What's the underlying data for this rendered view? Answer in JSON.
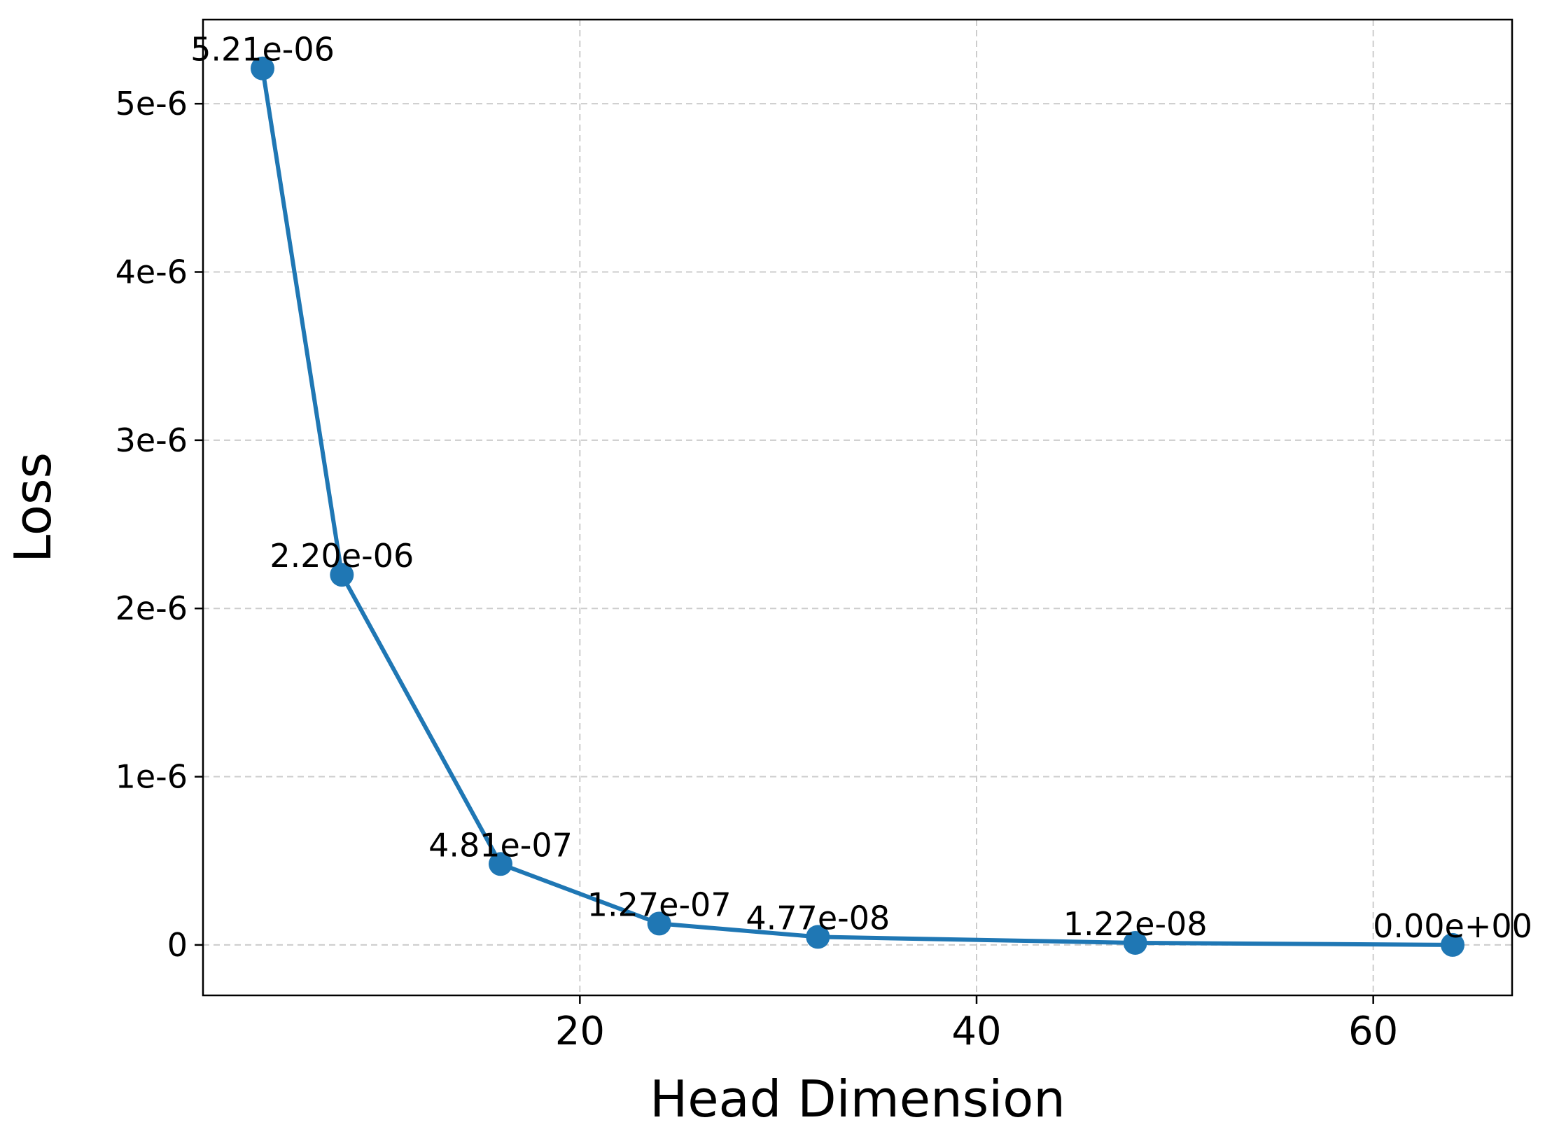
{
  "chart_data": {
    "type": "line",
    "title": "",
    "xlabel": "Head Dimension",
    "ylabel": "Loss",
    "x": [
      4,
      8,
      16,
      24,
      32,
      48,
      64
    ],
    "series": [
      {
        "name": "",
        "values": [
          5.21e-06,
          2.2e-06,
          4.81e-07,
          1.27e-07,
          4.77e-08,
          1.22e-08,
          0
        ],
        "labels": [
          "5.21e-06",
          "2.20e-06",
          "4.81e-07",
          "1.27e-07",
          "4.77e-08",
          "1.22e-08",
          "0.00e+00"
        ],
        "color": "#1f77b4",
        "marker": "circle"
      }
    ],
    "xlim": [
      1,
      67
    ],
    "ylim": [
      -3e-07,
      5.5e-06
    ],
    "xticks": [
      20,
      40,
      60
    ],
    "xtick_labels": [
      "20",
      "40",
      "60"
    ],
    "yticks": [
      0,
      1e-06,
      2e-06,
      3e-06,
      4e-06,
      5e-06
    ],
    "ytick_labels": [
      "0",
      "1e-6",
      "2e-6",
      "3e-6",
      "4e-6",
      "5e-6"
    ],
    "grid": true,
    "grid_style": "dashed",
    "legend": "none"
  }
}
